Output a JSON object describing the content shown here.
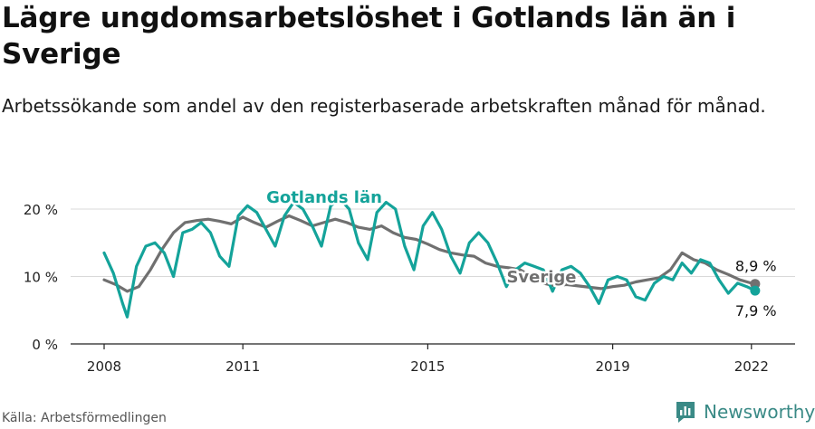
{
  "title": "Lägre ungdomsarbetslöshet i Gotlands län än i Sverige",
  "subtitle": "Arbetssökande som andel av den registerbaserade arbetskraften månad för månad.",
  "source": "Källa: Arbetsförmedlingen",
  "brand": {
    "name": "Newsworthy",
    "icon": "newsworthy-logo-icon",
    "color": "#3a8a86"
  },
  "chart_data": {
    "type": "line",
    "x_ticks": [
      "2008",
      "2011",
      "2015",
      "2019",
      "2022"
    ],
    "y_ticks": [
      "0 %",
      "10 %",
      "20 %"
    ],
    "ylim": [
      0,
      20
    ],
    "xlim": [
      2008.0,
      2022.2
    ],
    "grid": true,
    "series": [
      {
        "name": "Sverige",
        "color": "#707070",
        "end_label": "8,9 %",
        "x": [
          2008.0,
          2008.25,
          2008.5,
          2008.75,
          2009.0,
          2009.25,
          2009.5,
          2009.75,
          2010.0,
          2010.25,
          2010.5,
          2010.75,
          2011.0,
          2011.25,
          2011.5,
          2011.75,
          2012.0,
          2012.25,
          2012.5,
          2012.75,
          2013.0,
          2013.25,
          2013.5,
          2013.75,
          2014.0,
          2014.25,
          2014.5,
          2014.75,
          2015.0,
          2015.25,
          2015.5,
          2015.75,
          2016.0,
          2016.25,
          2016.5,
          2016.75,
          2017.0,
          2017.25,
          2017.5,
          2017.75,
          2018.0,
          2018.25,
          2018.5,
          2018.75,
          2019.0,
          2019.25,
          2019.5,
          2019.75,
          2020.0,
          2020.25,
          2020.5,
          2020.75,
          2021.0,
          2021.25,
          2021.5,
          2021.75,
          2022.0,
          2022.08
        ],
        "y": [
          9.5,
          8.8,
          7.8,
          8.5,
          11.0,
          14.0,
          16.5,
          18.0,
          18.3,
          18.5,
          18.2,
          17.8,
          18.8,
          18.0,
          17.3,
          18.2,
          19.0,
          18.3,
          17.5,
          18.0,
          18.5,
          18.0,
          17.3,
          17.0,
          17.5,
          16.5,
          15.8,
          15.5,
          14.8,
          14.0,
          13.5,
          13.2,
          13.0,
          12.0,
          11.5,
          11.3,
          11.0,
          10.0,
          9.0,
          8.6,
          8.8,
          8.6,
          8.4,
          8.2,
          8.5,
          8.7,
          9.2,
          9.5,
          9.8,
          11.0,
          13.5,
          12.5,
          12.0,
          11.0,
          10.3,
          9.5,
          9.0,
          8.9
        ]
      },
      {
        "name": "Gotlands län",
        "color": "#14a39a",
        "end_label": "7,9 %",
        "x": [
          2008.0,
          2008.2,
          2008.4,
          2008.5,
          2008.7,
          2008.9,
          2009.1,
          2009.3,
          2009.5,
          2009.7,
          2009.9,
          2010.1,
          2010.3,
          2010.5,
          2010.7,
          2010.9,
          2011.1,
          2011.3,
          2011.5,
          2011.7,
          2011.9,
          2012.1,
          2012.3,
          2012.5,
          2012.7,
          2012.9,
          2013.1,
          2013.3,
          2013.5,
          2013.7,
          2013.9,
          2014.1,
          2014.3,
          2014.5,
          2014.7,
          2014.9,
          2015.1,
          2015.3,
          2015.5,
          2015.7,
          2015.9,
          2016.1,
          2016.3,
          2016.5,
          2016.7,
          2016.9,
          2017.1,
          2017.3,
          2017.5,
          2017.7,
          2017.9,
          2018.1,
          2018.3,
          2018.5,
          2018.7,
          2018.9,
          2019.1,
          2019.3,
          2019.5,
          2019.7,
          2019.9,
          2020.1,
          2020.3,
          2020.5,
          2020.7,
          2020.9,
          2021.1,
          2021.3,
          2021.5,
          2021.7,
          2021.9,
          2022.08
        ],
        "y": [
          13.5,
          10.5,
          6.0,
          4.0,
          11.5,
          14.5,
          15.0,
          13.5,
          10.0,
          16.5,
          17.0,
          18.0,
          16.5,
          13.0,
          11.5,
          19.0,
          20.5,
          19.5,
          17.0,
          14.5,
          19.0,
          21.0,
          20.0,
          17.5,
          14.5,
          20.5,
          21.5,
          20.0,
          15.0,
          12.5,
          19.5,
          21.0,
          20.0,
          14.5,
          11.0,
          17.5,
          19.5,
          17.0,
          13.0,
          10.5,
          15.0,
          16.5,
          15.0,
          12.0,
          8.5,
          11.0,
          12.0,
          11.5,
          11.0,
          7.8,
          11.0,
          11.5,
          10.5,
          8.5,
          6.0,
          9.5,
          10.0,
          9.5,
          7.0,
          6.5,
          9.0,
          10.0,
          9.5,
          12.0,
          10.5,
          12.5,
          12.0,
          9.5,
          7.5,
          9.0,
          8.5,
          7.9
        ]
      }
    ]
  }
}
